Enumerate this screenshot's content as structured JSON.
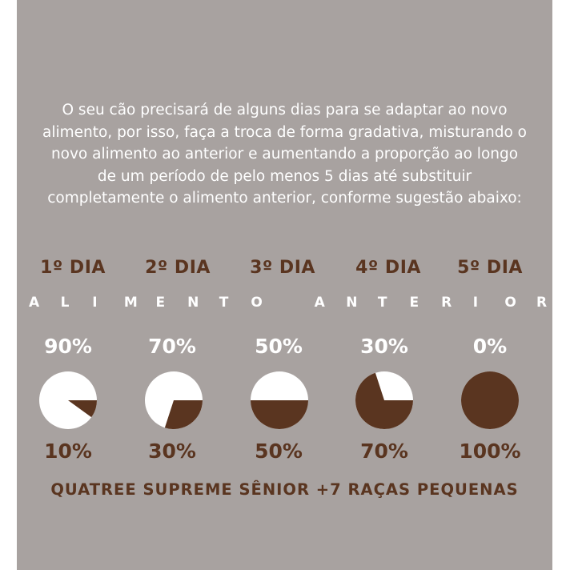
{
  "intro": [
    "O seu cão precisará de alguns dias para se adaptar ao novo",
    "alimento, por isso, faça a troca de forma gradativa, misturando o",
    "novo alimento ao anterior e aumentando a proporção ao longo",
    "de um período de pelo menos 5 dias até substituir",
    "completamente o alimento anterior, conforme sugestão abaixo:"
  ],
  "previous_food_label": "ALIMENTO ANTERIOR",
  "days": [
    {
      "label": "1º DIA",
      "previous_pct": "90%",
      "new_pct": "10%",
      "new_fraction": 0.1
    },
    {
      "label": "2º DIA",
      "previous_pct": "70%",
      "new_pct": "30%",
      "new_fraction": 0.3
    },
    {
      "label": "3º DIA",
      "previous_pct": "50%",
      "new_pct": "50%",
      "new_fraction": 0.5
    },
    {
      "label": "4º DIA",
      "previous_pct": "30%",
      "new_pct": "70%",
      "new_fraction": 0.7
    },
    {
      "label": "5º DIA",
      "previous_pct": "0%",
      "new_pct": "100%",
      "new_fraction": 1.0
    }
  ],
  "product_name": "QUATREE SUPREME SÊNIOR +7 RAÇAS PEQUENAS",
  "colors": {
    "background": "#a8a2a0",
    "brown": "#5a3520",
    "white": "#ffffff"
  }
}
